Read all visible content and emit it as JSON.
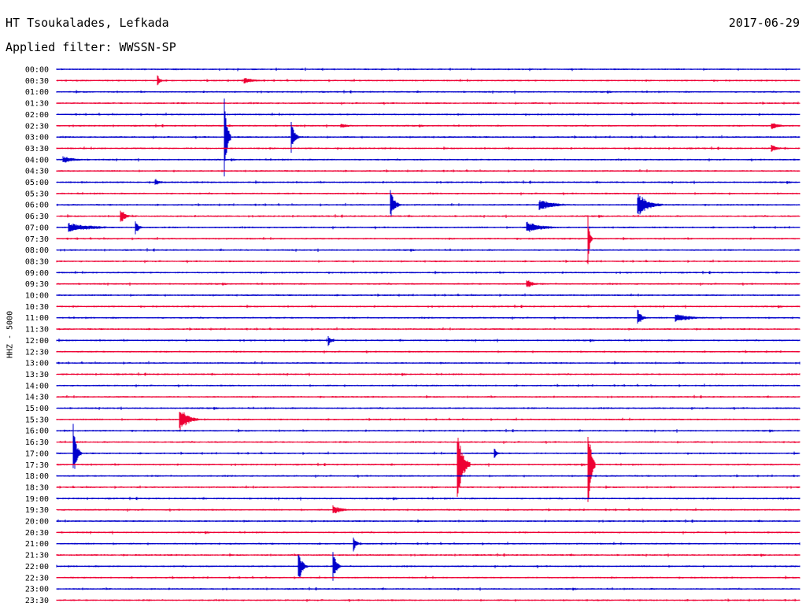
{
  "header": {
    "station": "HT Tsoukalades, Lefkada",
    "date": "2017-06-29",
    "filter": "Applied filter: WWSSN-SP"
  },
  "chart_data": {
    "type": "helicorder",
    "ylabel": "HHZ - 5000",
    "xlabel": "",
    "rows": [
      "00:00",
      "00:30",
      "01:00",
      "01:30",
      "02:00",
      "02:30",
      "03:00",
      "03:30",
      "04:00",
      "04:30",
      "05:00",
      "05:30",
      "06:00",
      "06:30",
      "07:00",
      "07:30",
      "08:00",
      "08:30",
      "09:00",
      "09:30",
      "10:00",
      "10:30",
      "11:00",
      "11:30",
      "12:00",
      "12:30",
      "13:00",
      "13:30",
      "14:00",
      "14:30",
      "15:00",
      "15:30",
      "16:00",
      "16:30",
      "17:00",
      "17:30",
      "18:00",
      "18:30",
      "19:00",
      "19:30",
      "20:00",
      "20:30",
      "21:00",
      "21:30",
      "22:00",
      "22:30",
      "23:00",
      "23:30"
    ],
    "minutes_per_row": 30,
    "colors": {
      "even": "#0000cc",
      "odd": "#ee0033"
    },
    "events": [
      {
        "row": 1,
        "minute": 4.1,
        "amplitude": 0.4,
        "duration": 0.3
      },
      {
        "row": 1,
        "minute": 7.6,
        "amplitude": 0.25,
        "duration": 1.2
      },
      {
        "row": 5,
        "minute": 11.5,
        "amplitude": 0.2,
        "duration": 1.0
      },
      {
        "row": 5,
        "minute": 28.9,
        "amplitude": 0.3,
        "duration": 0.8
      },
      {
        "row": 6,
        "minute": 6.8,
        "amplitude": 2.8,
        "duration": 0.25
      },
      {
        "row": 6,
        "minute": 9.5,
        "amplitude": 1.2,
        "duration": 0.3
      },
      {
        "row": 7,
        "minute": 28.9,
        "amplitude": 0.3,
        "duration": 0.6
      },
      {
        "row": 8,
        "minute": 0.3,
        "amplitude": 0.3,
        "duration": 1.2
      },
      {
        "row": 10,
        "minute": 4.0,
        "amplitude": 0.3,
        "duration": 0.5
      },
      {
        "row": 12,
        "minute": 13.5,
        "amplitude": 1.2,
        "duration": 0.4
      },
      {
        "row": 12,
        "minute": 19.5,
        "amplitude": 0.5,
        "duration": 1.5
      },
      {
        "row": 12,
        "minute": 23.5,
        "amplitude": 1.0,
        "duration": 1.0
      },
      {
        "row": 13,
        "minute": 2.6,
        "amplitude": 0.7,
        "duration": 0.4
      },
      {
        "row": 14,
        "minute": 0.5,
        "amplitude": 0.4,
        "duration": 2.5
      },
      {
        "row": 14,
        "minute": 3.2,
        "amplitude": 0.6,
        "duration": 0.3
      },
      {
        "row": 14,
        "minute": 19.0,
        "amplitude": 0.5,
        "duration": 1.5
      },
      {
        "row": 15,
        "minute": 21.5,
        "amplitude": 1.2,
        "duration": 0.15
      },
      {
        "row": 19,
        "minute": 19.0,
        "amplitude": 0.4,
        "duration": 0.6
      },
      {
        "row": 22,
        "minute": 23.5,
        "amplitude": 0.6,
        "duration": 0.4
      },
      {
        "row": 22,
        "minute": 25.0,
        "amplitude": 0.4,
        "duration": 1.5
      },
      {
        "row": 24,
        "minute": 11.0,
        "amplitude": 0.4,
        "duration": 0.3
      },
      {
        "row": 31,
        "minute": 5.0,
        "amplitude": 1.0,
        "duration": 0.8
      },
      {
        "row": 34,
        "minute": 0.7,
        "amplitude": 2.0,
        "duration": 0.3
      },
      {
        "row": 34,
        "minute": 17.7,
        "amplitude": 0.4,
        "duration": 0.3
      },
      {
        "row": 35,
        "minute": 16.2,
        "amplitude": 3.0,
        "duration": 0.5
      },
      {
        "row": 35,
        "minute": 21.5,
        "amplitude": 3.0,
        "duration": 0.25
      },
      {
        "row": 39,
        "minute": 11.2,
        "amplitude": 0.4,
        "duration": 0.8
      },
      {
        "row": 42,
        "minute": 12.0,
        "amplitude": 0.6,
        "duration": 0.3
      },
      {
        "row": 44,
        "minute": 9.8,
        "amplitude": 1.2,
        "duration": 0.35
      },
      {
        "row": 44,
        "minute": 11.2,
        "amplitude": 1.0,
        "duration": 0.3
      }
    ]
  }
}
